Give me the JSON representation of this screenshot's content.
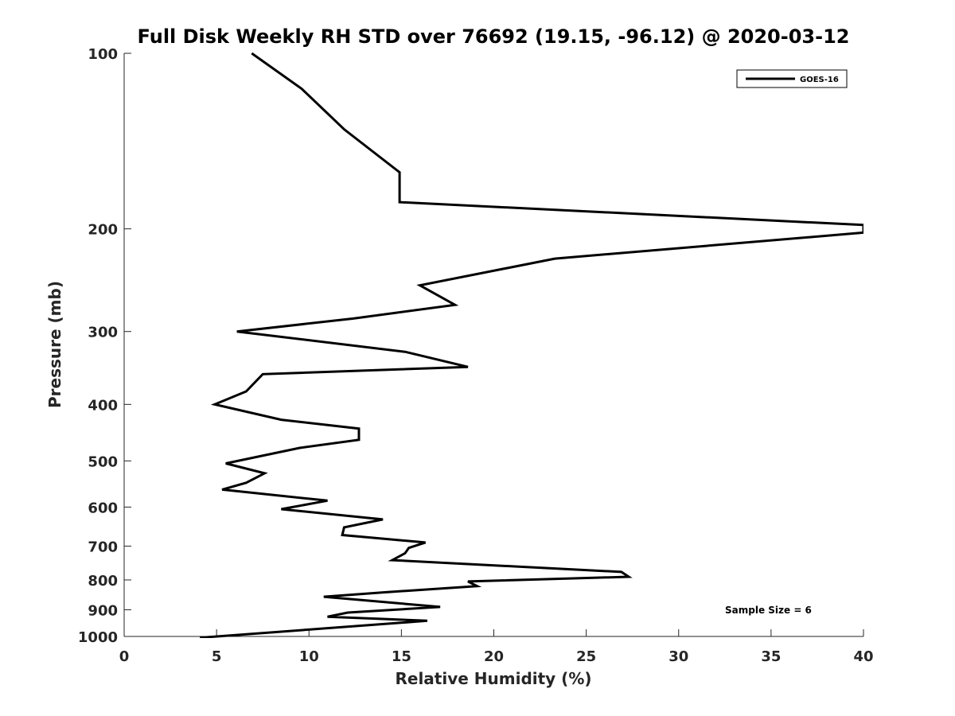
{
  "chart_data": {
    "type": "line",
    "title": "Full Disk Weekly RH STD over 76692 (19.15, -96.12) @ 2020-03-12",
    "xlabel": "Relative Humidity (%)",
    "ylabel": "Pressure (mb)",
    "xlim": [
      0,
      40
    ],
    "ylim": [
      100,
      1000
    ],
    "y_scale": "log",
    "y_reversed": true,
    "x_ticks": [
      "0",
      "5",
      "10",
      "15",
      "20",
      "25",
      "30",
      "35",
      "40"
    ],
    "x_tick_values": [
      0,
      5,
      10,
      15,
      20,
      25,
      30,
      35,
      40
    ],
    "y_ticks": [
      "100",
      "200",
      "300",
      "400",
      "500",
      "600",
      "700",
      "800",
      "900",
      "1000"
    ],
    "y_tick_values": [
      100,
      200,
      300,
      400,
      500,
      600,
      700,
      800,
      900,
      1000
    ],
    "grid": false,
    "legend_position": "top-right",
    "series": [
      {
        "name": "GOES-16",
        "color": "#000000",
        "points": [
          [
            6.9,
            100
          ],
          [
            9.6,
            115
          ],
          [
            11.9,
            135
          ],
          [
            14.9,
            160
          ],
          [
            14.9,
            180
          ],
          [
            40.0,
            197
          ],
          [
            40.0,
            203
          ],
          [
            23.3,
            225
          ],
          [
            16.0,
            250
          ],
          [
            17.9,
            270
          ],
          [
            12.4,
            285
          ],
          [
            6.1,
            300
          ],
          [
            15.2,
            325
          ],
          [
            18.6,
            345
          ],
          [
            7.5,
            355
          ],
          [
            6.6,
            380
          ],
          [
            4.9,
            400
          ],
          [
            8.5,
            425
          ],
          [
            12.7,
            440
          ],
          [
            12.7,
            460
          ],
          [
            9.5,
            475
          ],
          [
            5.5,
            505
          ],
          [
            7.6,
            525
          ],
          [
            6.6,
            545
          ],
          [
            5.3,
            560
          ],
          [
            11.0,
            585
          ],
          [
            8.5,
            605
          ],
          [
            14.0,
            630
          ],
          [
            11.9,
            650
          ],
          [
            11.8,
            670
          ],
          [
            16.3,
            690
          ],
          [
            15.4,
            705
          ],
          [
            15.2,
            720
          ],
          [
            14.5,
            740
          ],
          [
            26.9,
            775
          ],
          [
            27.3,
            790
          ],
          [
            18.6,
            805
          ],
          [
            19.1,
            820
          ],
          [
            14.1,
            840
          ],
          [
            10.8,
            855
          ],
          [
            17.1,
            890
          ],
          [
            12.1,
            910
          ],
          [
            11.0,
            925
          ],
          [
            16.4,
            940
          ],
          [
            4.1,
            1005
          ]
        ]
      }
    ],
    "annotation": "Sample Size = 6"
  }
}
